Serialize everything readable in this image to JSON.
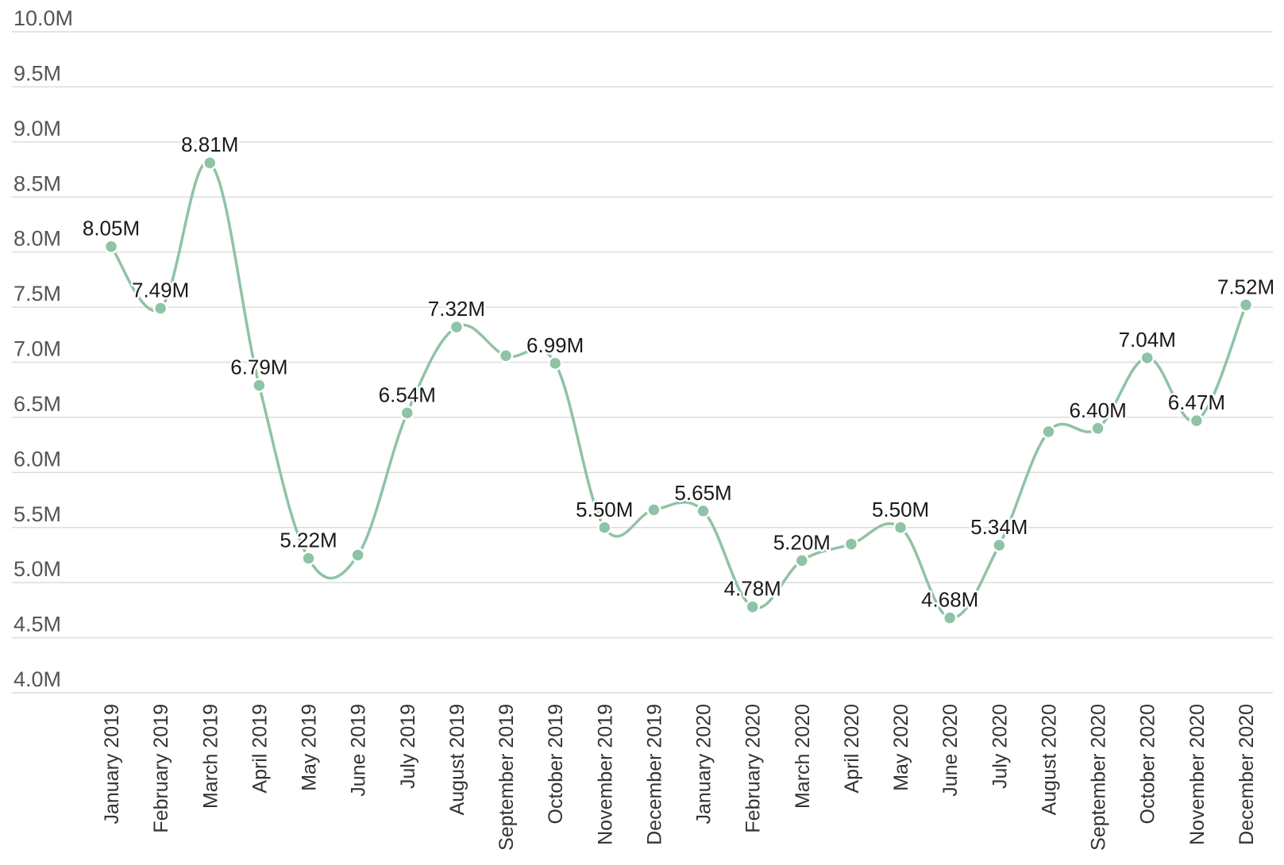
{
  "chart_data": {
    "type": "line",
    "title": "",
    "xlabel": "",
    "ylabel": "",
    "ylim": [
      4.0,
      10.0
    ],
    "y_ticks": [
      "4.0M",
      "4.5M",
      "5.0M",
      "5.5M",
      "6.0M",
      "6.5M",
      "7.0M",
      "7.5M",
      "8.0M",
      "8.5M",
      "9.0M",
      "9.5M",
      "10.0M"
    ],
    "grid": true,
    "smooth": true,
    "line_color": "#8fc3a5",
    "categories": [
      "January 2019",
      "February 2019",
      "March 2019",
      "April 2019",
      "May 2019",
      "June 2019",
      "July 2019",
      "August 2019",
      "September 2019",
      "October 2019",
      "November 2019",
      "December 2019",
      "January 2020",
      "February 2020",
      "March 2020",
      "April 2020",
      "May 2020",
      "June 2020",
      "July 2020",
      "August 2020",
      "September 2020",
      "October 2020",
      "November 2020",
      "December 2020"
    ],
    "values": [
      8.05,
      7.49,
      8.81,
      6.79,
      5.22,
      5.25,
      6.54,
      7.32,
      7.06,
      6.99,
      5.5,
      5.66,
      5.65,
      4.78,
      5.2,
      5.35,
      5.5,
      4.68,
      5.34,
      6.37,
      6.4,
      7.04,
      6.47,
      7.52
    ],
    "data_labels": [
      "8.05M",
      "7.49M",
      "8.81M",
      "6.79M",
      "5.22M",
      "",
      "6.54M",
      "7.32M",
      "",
      "6.99M",
      "5.50M",
      "",
      "5.65M",
      "4.78M",
      "5.20M",
      "",
      "5.50M",
      "4.68M",
      "5.34M",
      "",
      "6.40M",
      "7.04M",
      "6.47M",
      "7.52M"
    ]
  }
}
